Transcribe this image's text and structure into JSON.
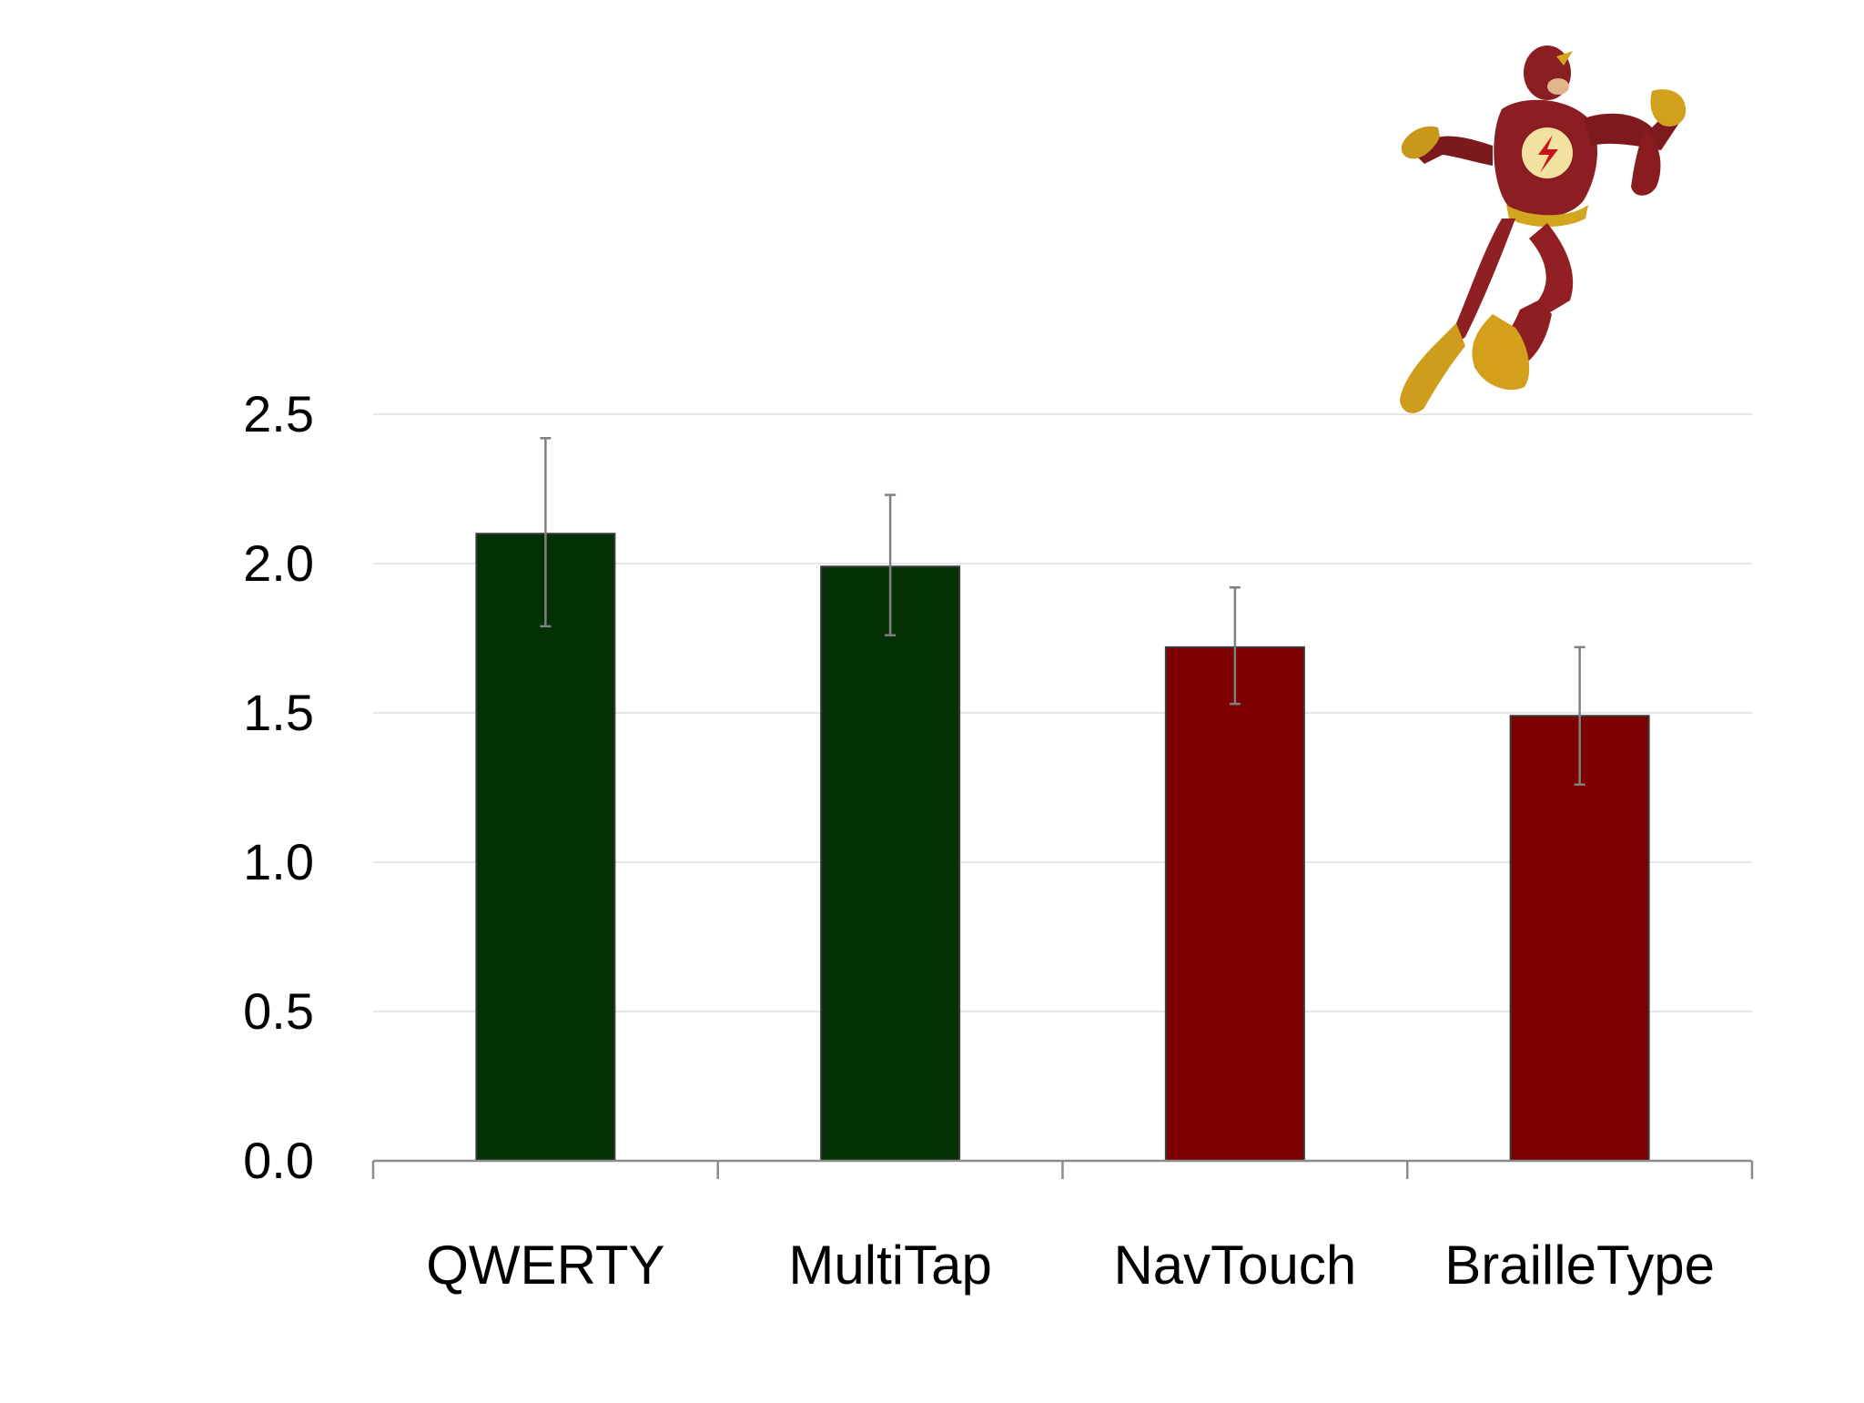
{
  "chart_data": {
    "type": "bar",
    "categories": [
      "QWERTY",
      "MultiTap",
      "NavTouch",
      "BrailleType"
    ],
    "values": [
      2.1,
      1.99,
      1.72,
      1.49
    ],
    "error_high": [
      2.42,
      2.23,
      1.92,
      1.72
    ],
    "error_low": [
      1.79,
      1.76,
      1.53,
      1.26
    ],
    "bar_colors": [
      "#033004",
      "#033004",
      "#7d0000",
      "#7d0000"
    ],
    "yticks": [
      "0.0",
      "0.5",
      "1.0",
      "1.5",
      "2.0",
      "2.5"
    ],
    "ylim": [
      0,
      2.5
    ],
    "grid": true,
    "title": "",
    "xlabel": "",
    "ylabel": "",
    "decoration": "running-superhero-figure"
  }
}
